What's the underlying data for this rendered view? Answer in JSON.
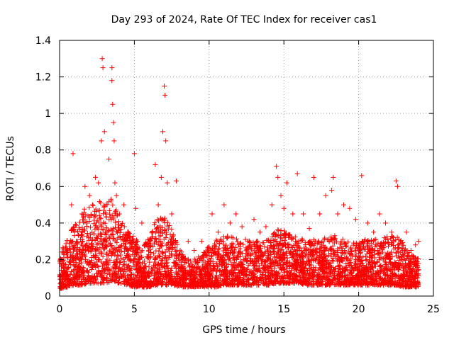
{
  "chart_data": {
    "type": "scatter",
    "title": "Day 293 of 2024, Rate Of TEC Index for receiver cas1",
    "xlabel": "GPS time / hours",
    "ylabel": "ROTI / TECUs",
    "xlim": [
      0,
      25
    ],
    "ylim": [
      0,
      1.4
    ],
    "xticks": [
      0,
      5,
      10,
      15,
      20,
      25
    ],
    "xtick_labels": [
      "0",
      "5",
      "10",
      "15",
      "20",
      "25"
    ],
    "yticks": [
      0,
      0.2,
      0.4,
      0.6,
      0.8,
      1.0,
      1.2,
      1.4
    ],
    "ytick_labels": [
      "0",
      "0.2",
      "0.4",
      "0.6",
      "0.8",
      "1",
      "1.2",
      "1.4"
    ],
    "grid": true,
    "legend": "none",
    "marker": "+",
    "series": [
      {
        "name": "ROTI",
        "color": "#ff0000",
        "x": [
          0.1,
          0.3,
          0.5,
          0.8,
          0.9,
          1.0,
          1.2,
          1.5,
          1.7,
          1.8,
          2.0,
          2.2,
          2.4,
          2.6,
          2.8,
          2.85,
          2.9,
          3.0,
          3.1,
          3.3,
          3.5,
          3.5,
          3.55,
          3.6,
          3.65,
          3.7,
          3.8,
          4.0,
          4.3,
          4.6,
          5.0,
          5.1,
          5.2,
          5.5,
          5.8,
          6.2,
          6.4,
          6.6,
          6.8,
          6.9,
          7.0,
          7.05,
          7.1,
          7.2,
          7.5,
          7.8,
          8.2,
          8.6,
          9.0,
          9.5,
          9.8,
          10.2,
          10.6,
          11.0,
          11.4,
          11.8,
          12.2,
          12.6,
          13.0,
          13.4,
          13.8,
          14.2,
          14.5,
          14.6,
          14.8,
          15.0,
          15.2,
          15.6,
          15.9,
          16.3,
          16.7,
          17.0,
          17.4,
          17.8,
          18.2,
          18.3,
          18.6,
          19.0,
          19.4,
          19.8,
          20.2,
          20.6,
          21.0,
          21.4,
          21.8,
          22.2,
          22.5,
          22.6,
          22.8,
          23.2,
          23.5,
          23.8,
          24.0
        ],
        "y": [
          0.2,
          0.15,
          0.25,
          0.5,
          0.78,
          0.35,
          0.3,
          0.45,
          0.6,
          0.4,
          0.55,
          0.5,
          0.65,
          0.62,
          0.85,
          1.3,
          1.25,
          0.9,
          0.5,
          0.75,
          1.18,
          1.25,
          1.05,
          0.95,
          0.85,
          0.62,
          0.55,
          0.45,
          0.5,
          0.35,
          0.78,
          0.48,
          0.3,
          0.4,
          0.28,
          0.35,
          0.72,
          0.5,
          0.65,
          0.9,
          1.15,
          1.1,
          0.85,
          0.62,
          0.45,
          0.63,
          0.2,
          0.3,
          0.25,
          0.3,
          0.22,
          0.45,
          0.35,
          0.5,
          0.4,
          0.45,
          0.38,
          0.3,
          0.42,
          0.35,
          0.38,
          0.5,
          0.71,
          0.65,
          0.55,
          0.48,
          0.62,
          0.45,
          0.67,
          0.45,
          0.37,
          0.65,
          0.45,
          0.55,
          0.58,
          0.65,
          0.45,
          0.5,
          0.48,
          0.42,
          0.66,
          0.4,
          0.35,
          0.45,
          0.4,
          0.35,
          0.63,
          0.6,
          0.3,
          0.35,
          0.25,
          0.28,
          0.3
        ],
        "envelope": {
          "hours": [
            0,
            0.5,
            1,
            1.5,
            2,
            2.5,
            3,
            3.5,
            4,
            4.5,
            5,
            5.5,
            6,
            6.5,
            7,
            7.5,
            8,
            8.5,
            9,
            9.5,
            10,
            10.5,
            11,
            11.5,
            12,
            12.5,
            13,
            13.5,
            14,
            14.5,
            15,
            15.5,
            16,
            16.5,
            17,
            17.5,
            18,
            18.5,
            19,
            19.5,
            20,
            20.5,
            21,
            21.5,
            22,
            22.5,
            23,
            23.5,
            24
          ],
          "typical_max": [
            0.22,
            0.3,
            0.38,
            0.45,
            0.48,
            0.5,
            0.5,
            0.52,
            0.42,
            0.35,
            0.32,
            0.24,
            0.32,
            0.42,
            0.42,
            0.35,
            0.25,
            0.2,
            0.2,
            0.22,
            0.27,
            0.3,
            0.32,
            0.32,
            0.3,
            0.3,
            0.3,
            0.28,
            0.3,
            0.35,
            0.35,
            0.32,
            0.32,
            0.28,
            0.3,
            0.3,
            0.32,
            0.32,
            0.3,
            0.28,
            0.28,
            0.3,
            0.3,
            0.3,
            0.32,
            0.32,
            0.28,
            0.22,
            0.2
          ],
          "typical_min": [
            0.04,
            0.05,
            0.06,
            0.06,
            0.07,
            0.07,
            0.07,
            0.08,
            0.07,
            0.06,
            0.05,
            0.05,
            0.05,
            0.06,
            0.06,
            0.06,
            0.05,
            0.05,
            0.05,
            0.05,
            0.05,
            0.05,
            0.06,
            0.06,
            0.06,
            0.06,
            0.06,
            0.06,
            0.06,
            0.07,
            0.07,
            0.07,
            0.07,
            0.06,
            0.06,
            0.06,
            0.06,
            0.06,
            0.06,
            0.06,
            0.06,
            0.06,
            0.06,
            0.06,
            0.06,
            0.06,
            0.05,
            0.05,
            0.05
          ]
        }
      }
    ]
  }
}
